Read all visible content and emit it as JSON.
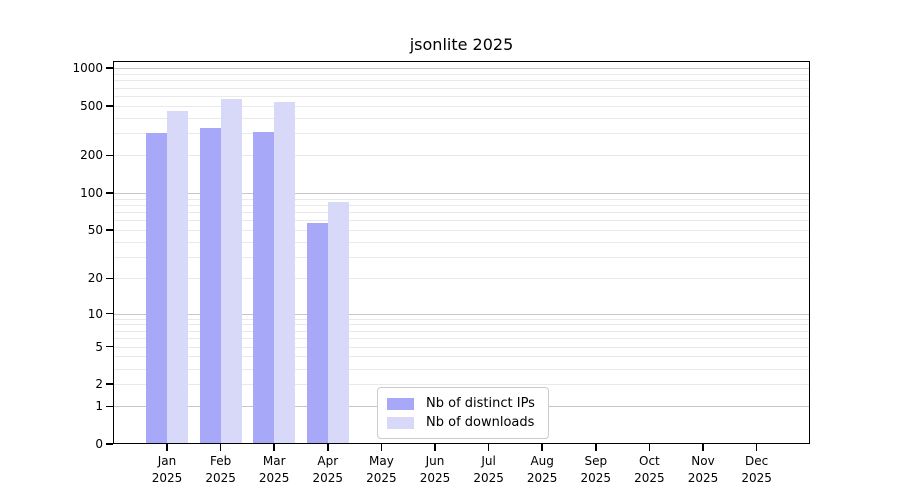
{
  "chart_data": {
    "type": "bar",
    "title": "jsonlite 2025",
    "categories": [
      "Jan",
      "Feb",
      "Mar",
      "Apr",
      "May",
      "Jun",
      "Jul",
      "Aug",
      "Sep",
      "Oct",
      "Nov",
      "Dec"
    ],
    "category_year": "2025",
    "series": [
      {
        "name": "Nb of distinct IPs",
        "color": "#a8a8f8",
        "values": [
          300,
          330,
          310,
          57,
          null,
          null,
          null,
          null,
          null,
          null,
          null,
          null
        ]
      },
      {
        "name": "Nb of downloads",
        "color": "#d8d8f9",
        "values": [
          450,
          565,
          535,
          85,
          null,
          null,
          null,
          null,
          null,
          null,
          null,
          null
        ]
      }
    ],
    "y_axis": {
      "scale": "log1p",
      "ticks": [
        0,
        1,
        2,
        5,
        10,
        20,
        50,
        100,
        200,
        500,
        1000
      ],
      "range": [
        0,
        1140
      ],
      "grid": "horizontal, minor every 2-9 per decade, major at powers of 10"
    },
    "x_axis": {
      "label_lines": 2
    },
    "legend": {
      "position": "bottom-center-inside"
    },
    "colors": {
      "axis": "#000000",
      "grid_minor": "#e9e9e9",
      "grid_major": "#c6c6c6",
      "text": "#000000",
      "background": "#ffffff"
    }
  }
}
